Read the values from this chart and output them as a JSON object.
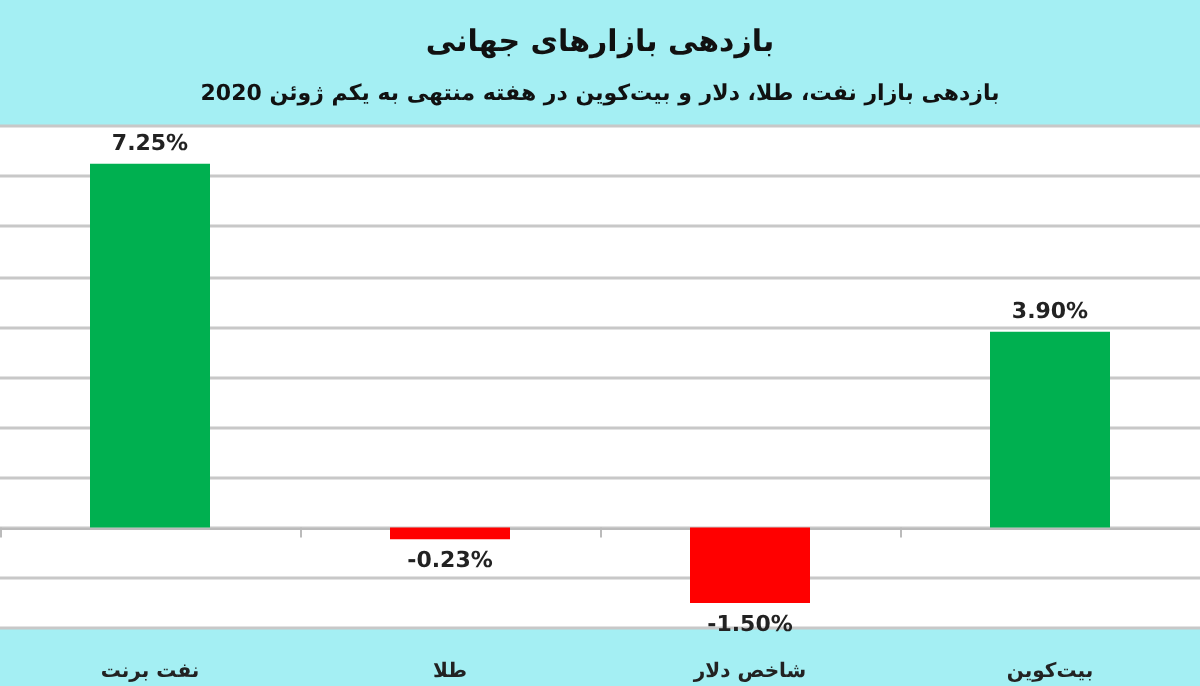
{
  "chart_data": {
    "type": "bar",
    "title": "بازدهی بازارهای جهانی",
    "subtitle": "بازدهی بازار نفت، طلا، دلار و بیت‌کوین در هفته منتهی به یکم ژوئن 2020",
    "categories": [
      "نفت برنت",
      "طلا",
      "شاخص دلار",
      "بیت‌کوین"
    ],
    "values": [
      7.25,
      -0.23,
      -1.5,
      3.9
    ],
    "colors": [
      "#00b050",
      "#ff0000",
      "#ff0000",
      "#00b050"
    ],
    "value_labels": [
      "7.25%",
      "-0.23%",
      "-1.50%",
      "3.90%"
    ],
    "ylim": [
      -2,
      8
    ],
    "yticks": [
      {
        "value": -2,
        "label": null
      },
      {
        "value": -1,
        "label": null
      },
      {
        "value": 0,
        "label": null
      },
      {
        "value": 1,
        "label": null
      },
      {
        "value": 2,
        "label": null
      },
      {
        "value": 3,
        "label": null
      },
      {
        "value": 4,
        "label": null
      },
      {
        "value": 5,
        "label": null
      },
      {
        "value": 6,
        "label": null
      },
      {
        "value": 7,
        "label": null
      },
      {
        "value": 8,
        "label": null
      }
    ],
    "tick_labels": "x",
    "grid": "y"
  }
}
